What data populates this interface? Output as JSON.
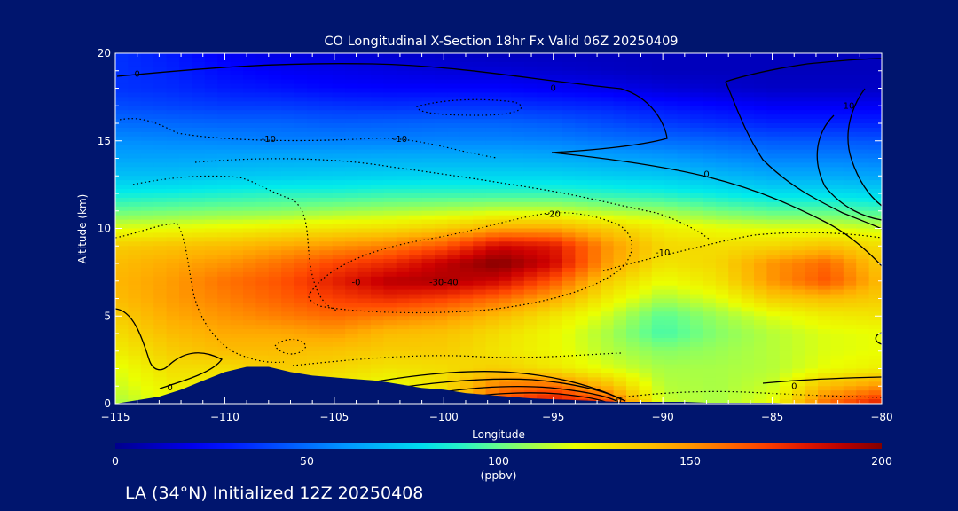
{
  "chart_data": {
    "type": "heatmap",
    "title": "CO Longitudinal X-Section 18hr  Fx Valid 06Z 20250409",
    "xlabel": "Longitude",
    "ylabel": "Altitude (km)",
    "xlim": [
      -115,
      -80
    ],
    "ylim": [
      0,
      20
    ],
    "x_ticks": [
      "-115",
      "-110",
      "-105",
      "-100",
      "-95",
      "-90",
      "-85",
      "-80"
    ],
    "y_ticks": [
      "0",
      "5",
      "10",
      "15",
      "20"
    ],
    "colorbar": {
      "ticks": [
        "0",
        "50",
        "100",
        "150",
        "200"
      ],
      "label": "(ppbv)",
      "range": [
        0,
        200
      ]
    },
    "footer": "LA (34°N) Initialized 12Z 20250408",
    "x": [
      -115,
      -112.5,
      -110,
      -107.5,
      -105,
      -102.5,
      -100,
      -97.5,
      -95,
      -92.5,
      -90,
      -87.5,
      -85,
      -82.5,
      -80
    ],
    "y": [
      0,
      1,
      2,
      3,
      4,
      5,
      6,
      7,
      8,
      9,
      10,
      11,
      12,
      13,
      14,
      15,
      16,
      17,
      18,
      19,
      20
    ],
    "z": [
      [
        110,
        120,
        120,
        128,
        118,
        120,
        122,
        165,
        185,
        170,
        115,
        110,
        120,
        160,
        180
      ],
      [
        115,
        125,
        125,
        132,
        125,
        120,
        130,
        155,
        160,
        140,
        112,
        110,
        115,
        140,
        150
      ],
      [
        118,
        130,
        130,
        135,
        132,
        128,
        130,
        135,
        128,
        118,
        110,
        110,
        112,
        120,
        125
      ],
      [
        125,
        135,
        140,
        140,
        138,
        135,
        135,
        128,
        122,
        112,
        105,
        108,
        112,
        118,
        120
      ],
      [
        130,
        140,
        145,
        145,
        148,
        140,
        138,
        130,
        122,
        110,
        95,
        105,
        112,
        118,
        120
      ],
      [
        135,
        145,
        150,
        155,
        160,
        155,
        150,
        140,
        128,
        115,
        98,
        108,
        118,
        125,
        128
      ],
      [
        140,
        148,
        155,
        162,
        170,
        175,
        170,
        160,
        145,
        125,
        110,
        118,
        135,
        140,
        135
      ],
      [
        142,
        148,
        158,
        165,
        178,
        190,
        192,
        185,
        165,
        135,
        120,
        128,
        150,
        165,
        140
      ],
      [
        140,
        145,
        150,
        158,
        168,
        175,
        188,
        200,
        185,
        148,
        128,
        132,
        150,
        160,
        135
      ],
      [
        135,
        138,
        140,
        145,
        150,
        155,
        165,
        185,
        180,
        150,
        132,
        130,
        132,
        138,
        130
      ],
      [
        118,
        120,
        122,
        125,
        128,
        130,
        135,
        145,
        145,
        135,
        125,
        120,
        118,
        118,
        115
      ],
      [
        100,
        102,
        104,
        105,
        108,
        110,
        112,
        115,
        115,
        110,
        108,
        102,
        98,
        98,
        95
      ],
      [
        85,
        86,
        88,
        90,
        90,
        92,
        92,
        92,
        92,
        90,
        88,
        84,
        80,
        80,
        78
      ],
      [
        72,
        72,
        74,
        75,
        76,
        77,
        78,
        78,
        78,
        76,
        74,
        70,
        66,
        66,
        64
      ],
      [
        64,
        64,
        65,
        66,
        66,
        67,
        67,
        67,
        66,
        64,
        62,
        58,
        55,
        55,
        54
      ],
      [
        58,
        57,
        56,
        55,
        55,
        55,
        56,
        56,
        55,
        52,
        50,
        48,
        45,
        45,
        44
      ],
      [
        50,
        49,
        48,
        48,
        46,
        47,
        48,
        48,
        46,
        42,
        38,
        35,
        32,
        32,
        32
      ],
      [
        42,
        40,
        38,
        38,
        36,
        35,
        36,
        36,
        34,
        32,
        28,
        25,
        22,
        22,
        22
      ],
      [
        36,
        34,
        30,
        28,
        25,
        24,
        24,
        24,
        22,
        20,
        16,
        14,
        12,
        12,
        12
      ],
      [
        36,
        32,
        26,
        22,
        20,
        18,
        16,
        16,
        14,
        12,
        10,
        10,
        10,
        10,
        10
      ],
      [
        36,
        30,
        22,
        18,
        16,
        14,
        12,
        10,
        10,
        10,
        10,
        10,
        10,
        10,
        10
      ]
    ],
    "terrain": {
      "x": [
        -115,
        -114,
        -113,
        -112,
        -111,
        -110,
        -109,
        -108,
        -107,
        -106,
        -105,
        -104,
        -103,
        -102,
        -101,
        -100,
        -99,
        -98,
        -97,
        -96,
        -95,
        -94,
        -93,
        -92,
        -91,
        -90,
        -89,
        -88,
        -87,
        -86,
        -85,
        -84,
        -83,
        -82,
        -81,
        -80
      ],
      "y": [
        0,
        0.2,
        0.4,
        0.8,
        1.3,
        1.8,
        2.1,
        2.1,
        1.8,
        1.6,
        1.5,
        1.4,
        1.3,
        1.1,
        0.9,
        0.8,
        0.6,
        0.5,
        0.4,
        0.3,
        0.25,
        0.2,
        0.15,
        0.1,
        0.1,
        0.1,
        0.1,
        0.05,
        0.05,
        0.05,
        0.05,
        0,
        0,
        0,
        0,
        0
      ]
    },
    "contour_labels": [
      {
        "x": -114,
        "y": 18.8,
        "text": "0"
      },
      {
        "x": -95,
        "y": 18.0,
        "text": "0"
      },
      {
        "x": -108,
        "y": 15.1,
        "text": "-10"
      },
      {
        "x": -102,
        "y": 15.1,
        "text": "-10"
      },
      {
        "x": -81.5,
        "y": 17.0,
        "text": "10"
      },
      {
        "x": -88,
        "y": 13.1,
        "text": "0"
      },
      {
        "x": -95,
        "y": 10.8,
        "text": "-20"
      },
      {
        "x": -90,
        "y": 8.6,
        "text": "-10"
      },
      {
        "x": -104,
        "y": 6.9,
        "text": "-0"
      },
      {
        "x": -100,
        "y": 6.9,
        "text": "-30-40"
      },
      {
        "x": -112.5,
        "y": 0.9,
        "text": "0"
      },
      {
        "x": -84,
        "y": 1.0,
        "text": "0"
      },
      {
        "x": -92,
        "y": 0.2,
        "text": "0"
      }
    ]
  }
}
